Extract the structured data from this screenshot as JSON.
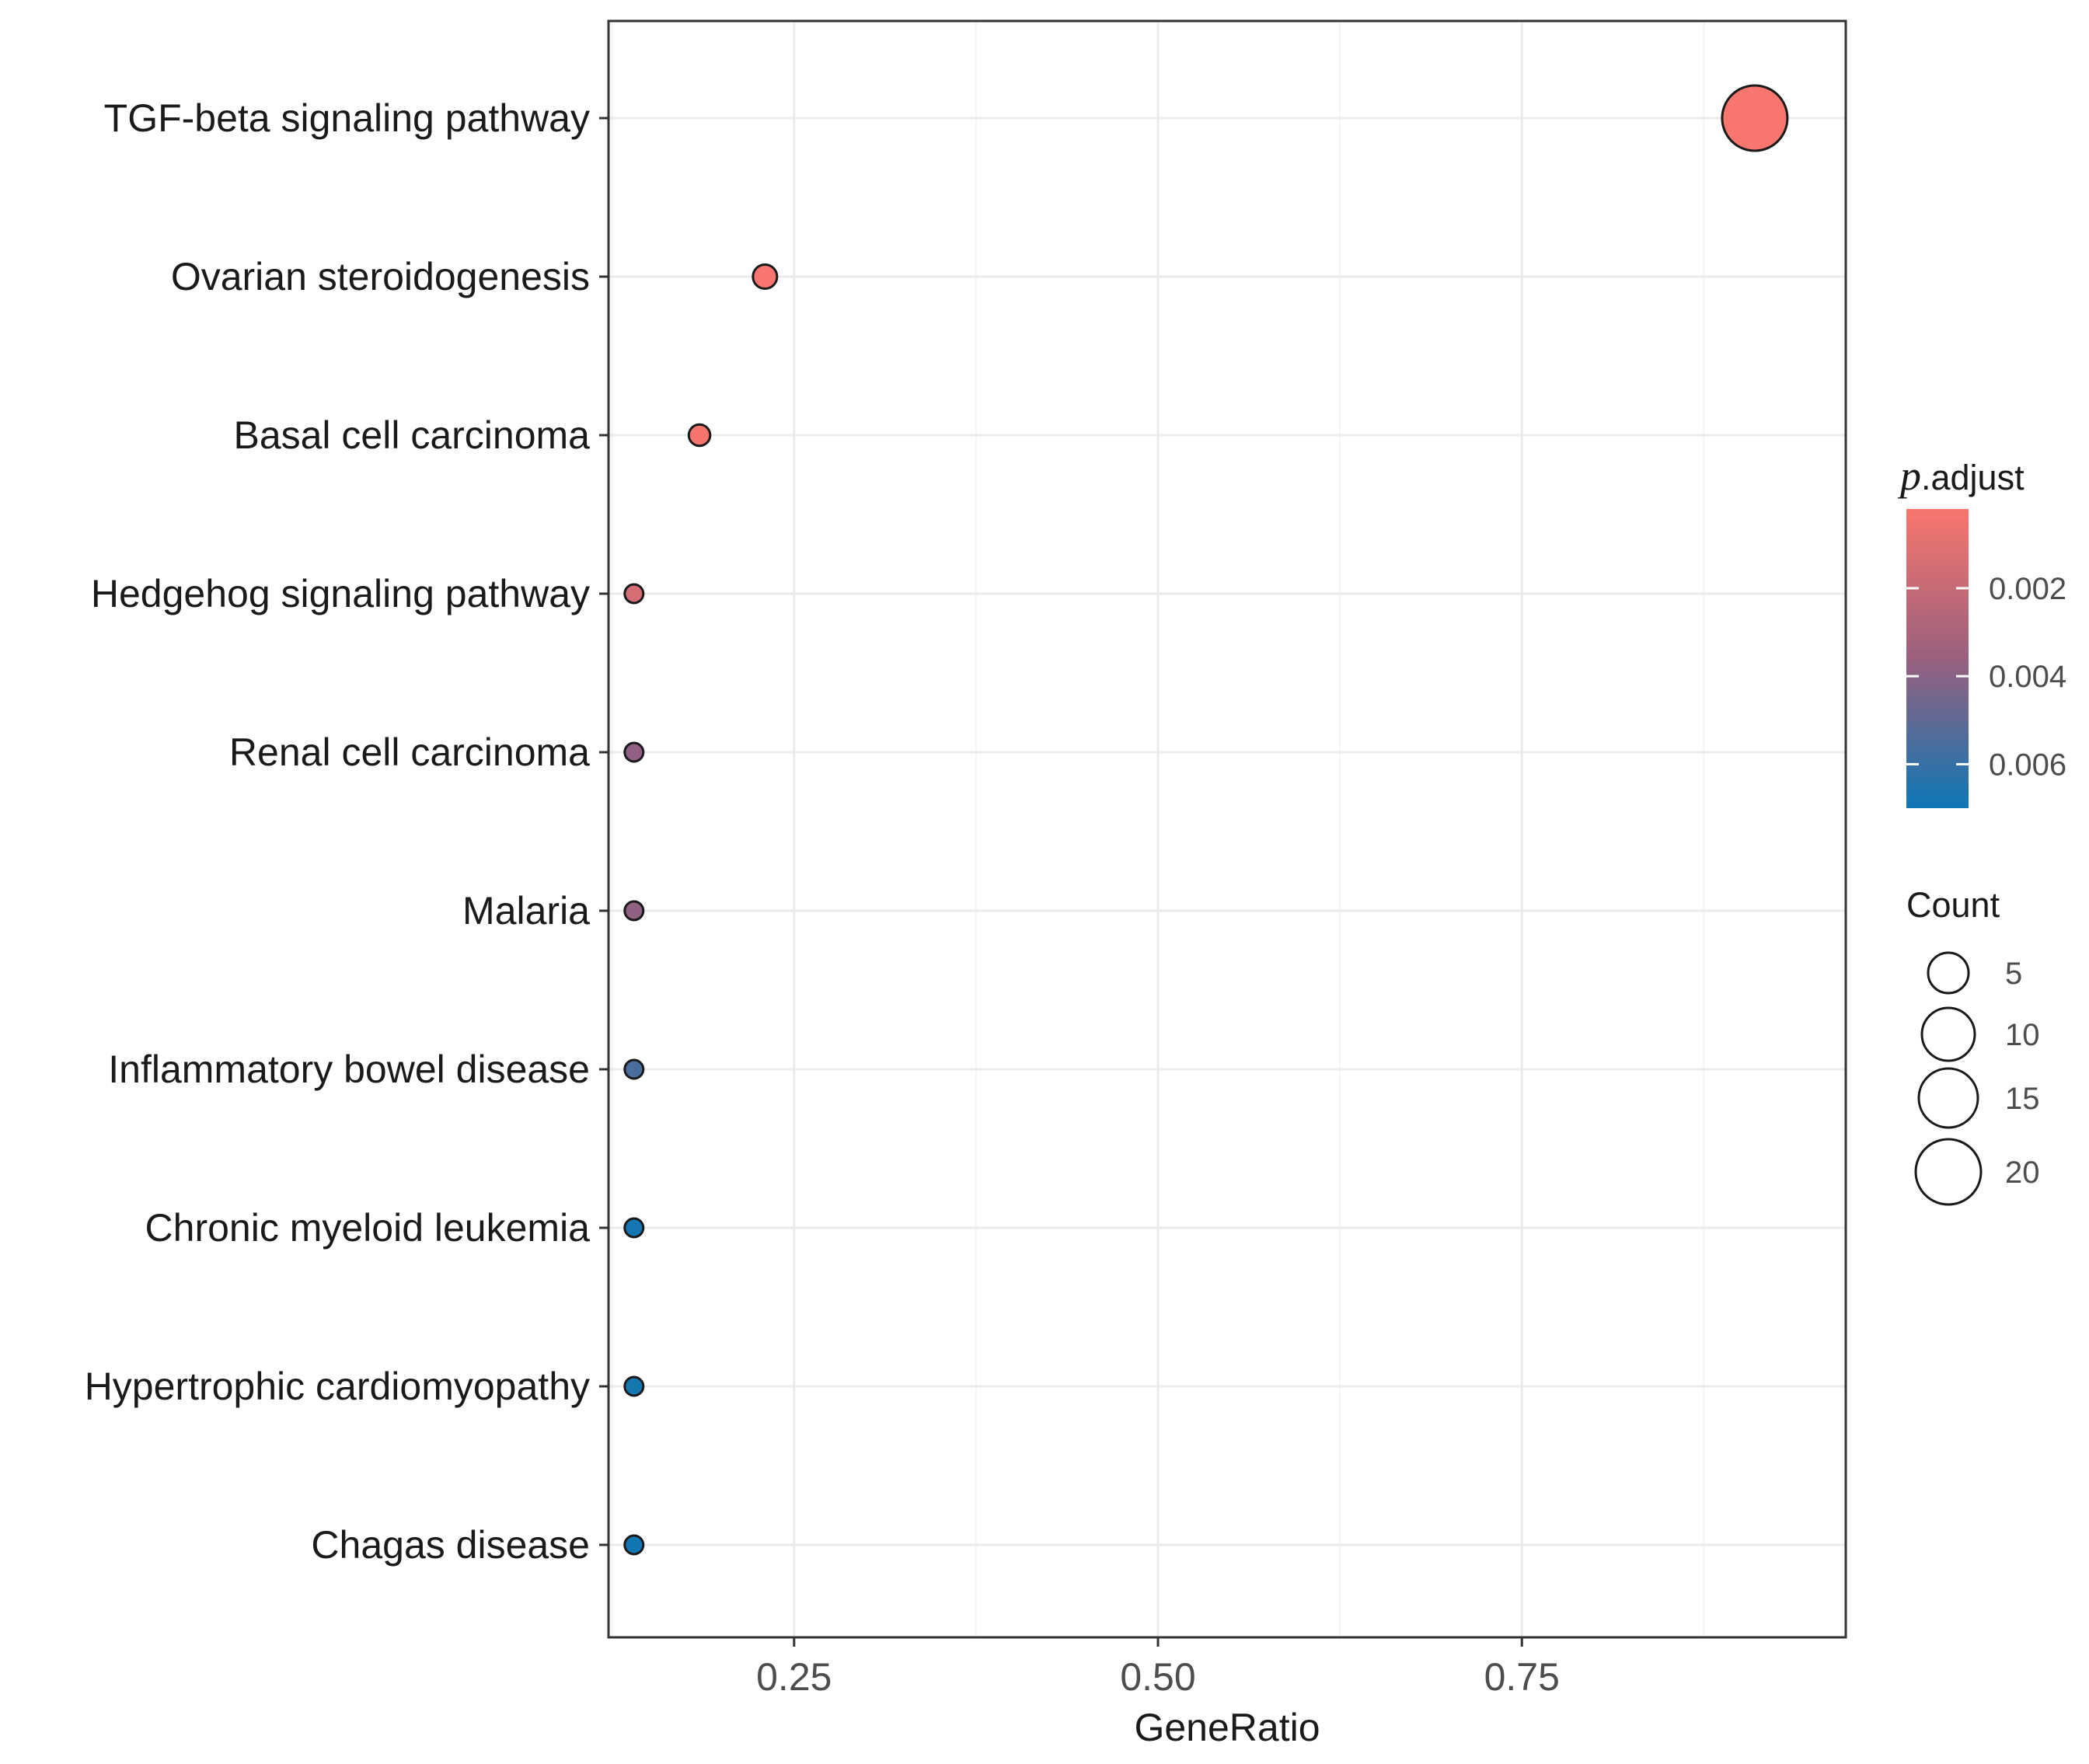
{
  "chart_data": {
    "type": "scatter",
    "title": "",
    "xlabel": "GeneRatio",
    "ylabel": "",
    "xlim": [
      0.1225,
      0.9725
    ],
    "x_ticks": [
      0.25,
      0.5,
      0.75
    ],
    "x_tick_labels": [
      "0.25",
      "0.50",
      "0.75"
    ],
    "grid": true,
    "categories": [
      "TGF-beta signaling pathway",
      "Ovarian steroidogenesis",
      "Basal cell carcinoma",
      "Hedgehog signaling pathway",
      "Renal cell carcinoma",
      "Malaria",
      "Inflammatory bowel disease",
      "Chronic myeloid leukemia",
      "Hypertrophic cardiomyopathy",
      "Chagas disease"
    ],
    "points": [
      {
        "term": "TGF-beta signaling pathway",
        "gene_ratio": 0.91,
        "count": 20,
        "p_adjust": 0.0002
      },
      {
        "term": "Ovarian steroidogenesis",
        "gene_ratio": 0.23,
        "count": 5,
        "p_adjust": 0.0002
      },
      {
        "term": "Basal cell carcinoma",
        "gene_ratio": 0.185,
        "count": 4,
        "p_adjust": 0.0003
      },
      {
        "term": "Hedgehog signaling pathway",
        "gene_ratio": 0.14,
        "count": 3,
        "p_adjust": 0.0015
      },
      {
        "term": "Renal cell carcinoma",
        "gene_ratio": 0.14,
        "count": 3,
        "p_adjust": 0.0038
      },
      {
        "term": "Malaria",
        "gene_ratio": 0.14,
        "count": 3,
        "p_adjust": 0.0038
      },
      {
        "term": "Inflammatory bowel disease",
        "gene_ratio": 0.14,
        "count": 3,
        "p_adjust": 0.0055
      },
      {
        "term": "Chronic myeloid leukemia",
        "gene_ratio": 0.14,
        "count": 3,
        "p_adjust": 0.0068
      },
      {
        "term": "Hypertrophic cardiomyopathy",
        "gene_ratio": 0.14,
        "count": 3,
        "p_adjust": 0.0068
      },
      {
        "term": "Chagas disease",
        "gene_ratio": 0.14,
        "count": 3,
        "p_adjust": 0.0069
      }
    ],
    "color_legend": {
      "title_italic": "p",
      "title_rest": ".adjust",
      "range": [
        0.0002,
        0.007
      ],
      "ticks": [
        0.002,
        0.004,
        0.006
      ],
      "tick_labels": [
        "0.002",
        "0.004",
        "0.006"
      ],
      "low_color": "#F8766D",
      "high_color": "#0E77B5",
      "mid_color": "#99607E"
    },
    "size_legend": {
      "title": "Count",
      "breaks": [
        5,
        10,
        15,
        20
      ],
      "labels": [
        "5",
        "10",
        "15",
        "20"
      ]
    },
    "legend_position": "right",
    "colors": {
      "panel_border": "#333333",
      "grid_major": "#EBEBEB",
      "grid_minor": "#F4F4F4",
      "text": "#1A1A1A",
      "tick_text": "#4D4D4D"
    }
  }
}
